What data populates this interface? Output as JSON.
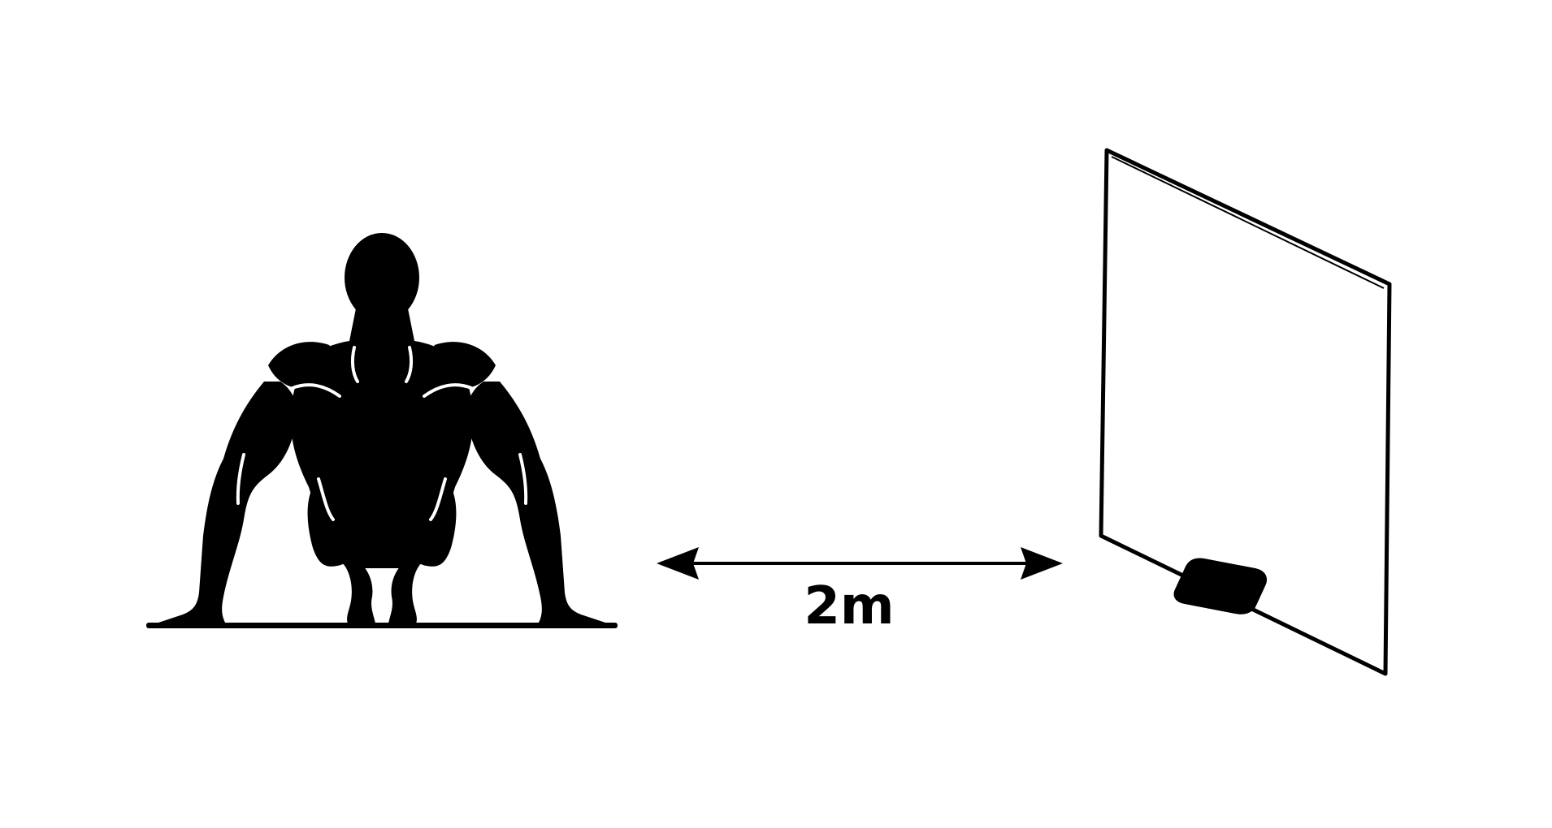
{
  "diagram": {
    "distance_label": "2m",
    "colors": {
      "ink": "#000000",
      "background": "#ffffff"
    },
    "elements": {
      "person": "crouching-athlete-silhouette-icon",
      "arrow": "double-headed-arrow",
      "target": "display-screen-icon"
    }
  }
}
